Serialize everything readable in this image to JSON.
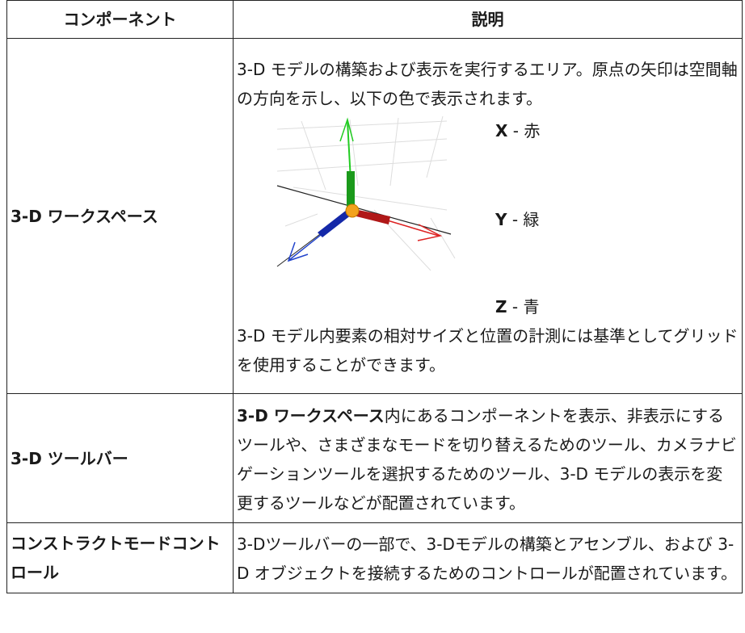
{
  "table": {
    "header": [
      "コンポーネント",
      "説明"
    ],
    "rows": [
      {
        "component": "3-D ワークスペース",
        "description": [
          "3-D モデルの構築および表示を実行するエリア。原点の矢印は空間軸の方向を示し、以下の色で表示されます。",
          "3-D モデル内要素の相対サイズと位置の計測には基準としてグリッドを使用することができます。"
        ],
        "axes": [
          {
            "name": "X",
            "text": " - 赤"
          },
          {
            "name": "Y",
            "text": " - 緑"
          },
          {
            "name": "Z",
            "text": " - 青"
          }
        ]
      },
      {
        "component": "3-D ツールバー",
        "description_bold": "3-D ワークスペース",
        "description": "内にあるコンポーネントを表示、非表示にするツールや、さまざまなモードを切り替えるためのツール、カメラナビゲーションツールを選択するためのツール、3-D モデルの表示を変更するツールなどが配置されています。"
      },
      {
        "component": "コンストラクトモードコントロール",
        "description": "3-Dツールバーの一部で、3-Dモデルの構築とアセンブル、および 3-D オブジェクトを接続するためのコントロールが配置されています。"
      }
    ]
  }
}
